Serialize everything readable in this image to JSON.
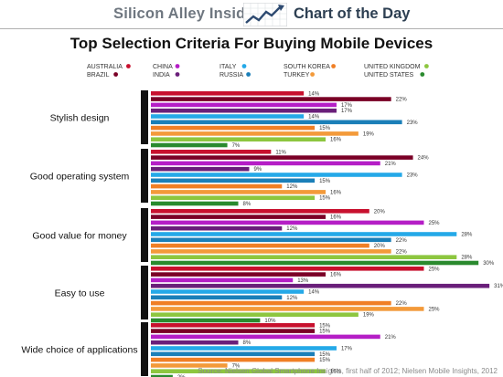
{
  "header": {
    "brand": "Silicon Alley Insider",
    "chart_of_day": "Chart of the Day"
  },
  "source": "Source: Nielsen Global Smartphone Insights, first half of 2012; Nielsen Mobile Insights, 2012",
  "colors": {
    "AUSTRALIA": "#c8102e",
    "BRAZIL": "#7a0026",
    "CHINA": "#b51ec6",
    "INDIA": "#6a1f7a",
    "ITALY": "#25a9e8",
    "RUSSIA": "#1b7fb8",
    "SOUTH KOREA": "#f07f25",
    "TURKEY": "#f39a3a",
    "UNITED KINGDOM": "#8dc63f",
    "UNITED STATES": "#2a8a2e"
  },
  "chart_data": {
    "type": "bar",
    "orientation": "horizontal",
    "title": "Top Selection Criteria For Buying Mobile Devices",
    "categories": [
      "Stylish design",
      "Good operating system",
      "Good value for money",
      "Easy to use",
      "Wide choice of applications"
    ],
    "series": [
      {
        "name": "AUSTRALIA",
        "values": [
          14,
          11,
          20,
          25,
          15
        ]
      },
      {
        "name": "BRAZIL",
        "values": [
          22,
          24,
          16,
          16,
          15
        ]
      },
      {
        "name": "CHINA",
        "values": [
          17,
          21,
          25,
          13,
          21
        ]
      },
      {
        "name": "INDIA",
        "values": [
          17,
          9,
          12,
          31,
          8
        ]
      },
      {
        "name": "ITALY",
        "values": [
          14,
          23,
          28,
          14,
          17
        ]
      },
      {
        "name": "RUSSIA",
        "values": [
          23,
          15,
          22,
          12,
          15
        ]
      },
      {
        "name": "SOUTH KOREA",
        "values": [
          15,
          12,
          20,
          22,
          15
        ]
      },
      {
        "name": "TURKEY",
        "values": [
          19,
          16,
          22,
          25,
          7
        ]
      },
      {
        "name": "UNITED KINGDOM",
        "values": [
          16,
          15,
          28,
          19,
          16
        ]
      },
      {
        "name": "UNITED STATES",
        "values": [
          7,
          8,
          30,
          10,
          2
        ]
      }
    ],
    "value_suffix": "%",
    "legend_position": "top",
    "legend_order": [
      "AUSTRALIA",
      "CHINA",
      "ITALY",
      "SOUTH KOREA",
      "UNITED KINGDOM",
      "BRAZIL",
      "INDIA",
      "RUSSIA",
      "TURKEY",
      "UNITED STATES"
    ]
  }
}
